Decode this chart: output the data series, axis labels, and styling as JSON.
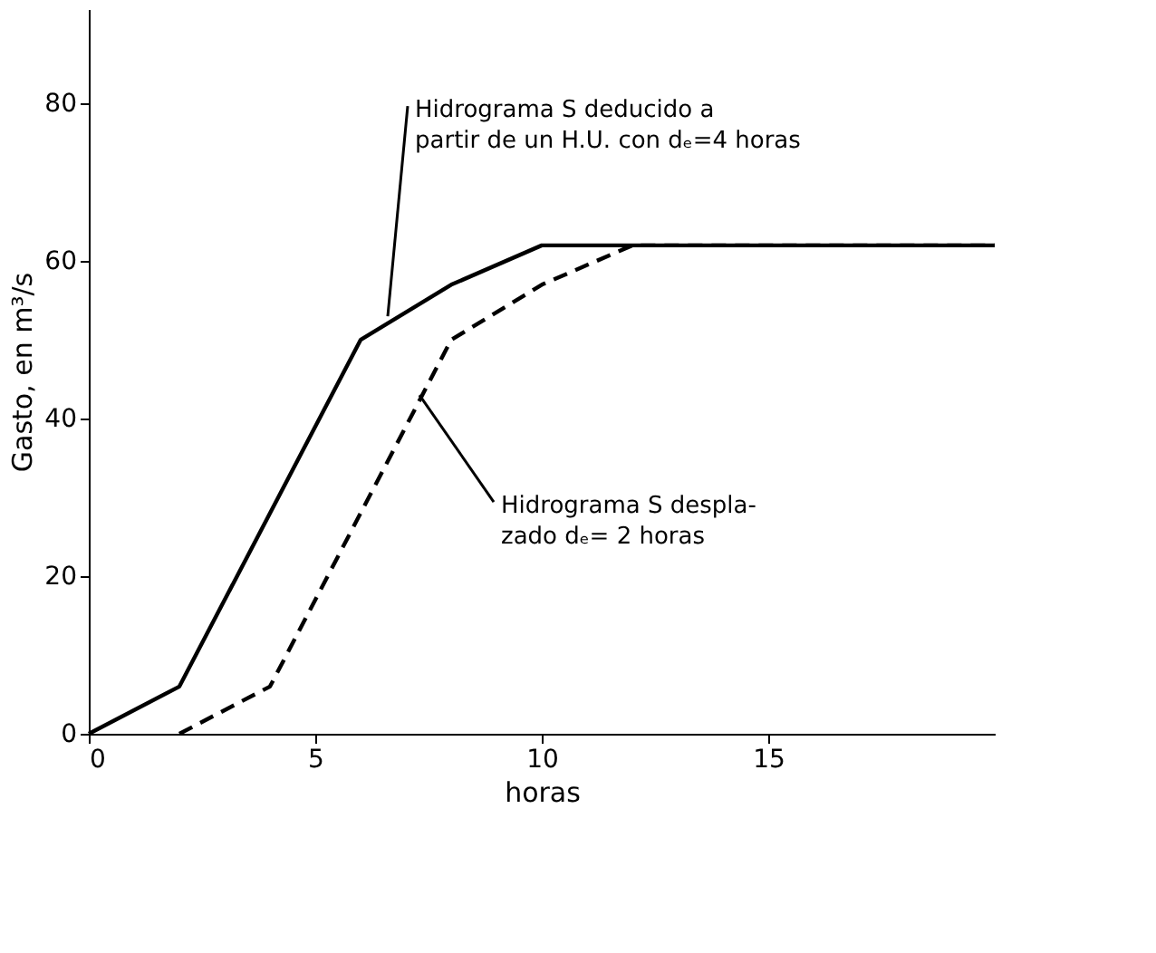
{
  "chart_data": {
    "type": "line",
    "xlabel": "horas",
    "ylabel": "Gasto, en m³/s",
    "xlim": [
      0,
      20
    ],
    "ylim": [
      0,
      92
    ],
    "xticks": [
      0,
      5,
      10,
      15
    ],
    "yticks": [
      0,
      20,
      40,
      60,
      80
    ],
    "grid": false,
    "marker": "none",
    "series": [
      {
        "x": [
          0,
          2,
          6,
          8,
          10,
          20
        ],
        "values": [
          0,
          6,
          50,
          57,
          62,
          62
        ],
        "color": "#000000",
        "line_style": "solid"
      },
      {
        "x": [
          2,
          4,
          8,
          10,
          12,
          20
        ],
        "values": [
          0,
          6,
          50,
          57,
          62,
          62
        ],
        "color": "#000000",
        "line_style": "dashed"
      }
    ],
    "annotations": [
      {
        "text": "Hidrograma S deducido a\npartir de un H.U. con dₑ=4 horas",
        "x": 6.6,
        "y": 53
      },
      {
        "text": "Hidrograma S despla-\nzado dₑ= 2 horas",
        "x": 7.3,
        "y": 43
      }
    ]
  }
}
